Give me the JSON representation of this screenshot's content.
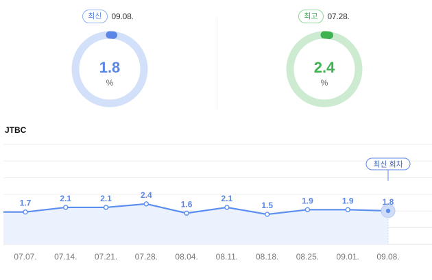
{
  "kpis": [
    {
      "badge": "최신",
      "date": "09.08.",
      "value": "1.8",
      "unit": "%",
      "fraction": 0.018,
      "color": "#5b86e5",
      "track": "#d3e0f9"
    },
    {
      "badge": "최고",
      "date": "07.28.",
      "value": "2.4",
      "unit": "%",
      "fraction": 0.024,
      "color": "#3fb34f",
      "track": "#cdebd0"
    }
  ],
  "chart_data": {
    "type": "area",
    "title": "JTBC",
    "categories": [
      "07.07.",
      "07.14.",
      "07.21.",
      "07.28.",
      "08.04.",
      "08.11.",
      "08.18.",
      "08.25.",
      "09.01.",
      "09.08."
    ],
    "data_labels": [
      "1.7",
      "2.1",
      "2.1",
      "2.4",
      "1.6",
      "2.1",
      "1.5",
      "1.9",
      "1.9",
      "1.8"
    ],
    "series": [
      {
        "values": [
          1.7,
          2.1,
          2.1,
          2.4,
          1.6,
          2.1,
          1.5,
          1.9,
          1.9,
          1.8
        ],
        "color": "#5b8def",
        "fill": "#ebf2fd"
      }
    ],
    "ylim": [
      -1.1,
      7.6
    ],
    "grid": true,
    "highlight": {
      "index": 9,
      "label": "최신 회차"
    }
  }
}
